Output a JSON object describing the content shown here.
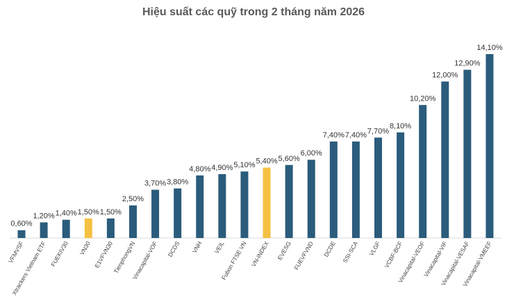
{
  "chart_data": {
    "type": "bar",
    "title": "Hiệu suất các quỹ trong 2 tháng năm 2026",
    "categories": [
      "VFMVSF",
      "Xtrackers Vietnam ETF",
      "FUEKIV30",
      "VN30",
      "E1VFVN30",
      "TienphongVN",
      "Vinacapital-VOF",
      "DCDS",
      "VNH",
      "VEIL",
      "Fubon FTSE VN",
      "VN-INDEX",
      "EVESG",
      "FUEVFVND",
      "DCDE",
      "SSI-SCA",
      "VLGF",
      "VCBF-BCF",
      "Vinacapital-VEOF",
      "Vinacapital-VIF",
      "Vinacapital-VESAF",
      "Vinacapital-VMEEF"
    ],
    "values": [
      0.6,
      1.2,
      1.4,
      1.5,
      1.5,
      2.5,
      3.7,
      3.8,
      4.8,
      4.9,
      5.1,
      5.4,
      5.6,
      6.0,
      7.4,
      7.4,
      7.7,
      8.1,
      10.2,
      12.0,
      12.9,
      14.1
    ],
    "value_labels": [
      "0,60%",
      "1,20%",
      "1,40%",
      "1,50%",
      "1,50%",
      "2,50%",
      "3,70%",
      "3,80%",
      "4,80%",
      "4,90%",
      "5,10%",
      "5,40%",
      "5,60%",
      "6,00%",
      "7,40%",
      "7,40%",
      "7,70%",
      "8,10%",
      "10,20%",
      "12,00%",
      "12,90%",
      "14,10%"
    ],
    "colors": [
      "#2b5c7c",
      "#2b5c7c",
      "#2b5c7c",
      "#f4c143",
      "#2b5c7c",
      "#2b5c7c",
      "#2b5c7c",
      "#2b5c7c",
      "#2b5c7c",
      "#2b5c7c",
      "#2b5c7c",
      "#f4c143",
      "#2b5c7c",
      "#2b5c7c",
      "#2b5c7c",
      "#2b5c7c",
      "#2b5c7c",
      "#2b5c7c",
      "#2b5c7c",
      "#2b5c7c",
      "#2b5c7c",
      "#2b5c7c"
    ]
  }
}
